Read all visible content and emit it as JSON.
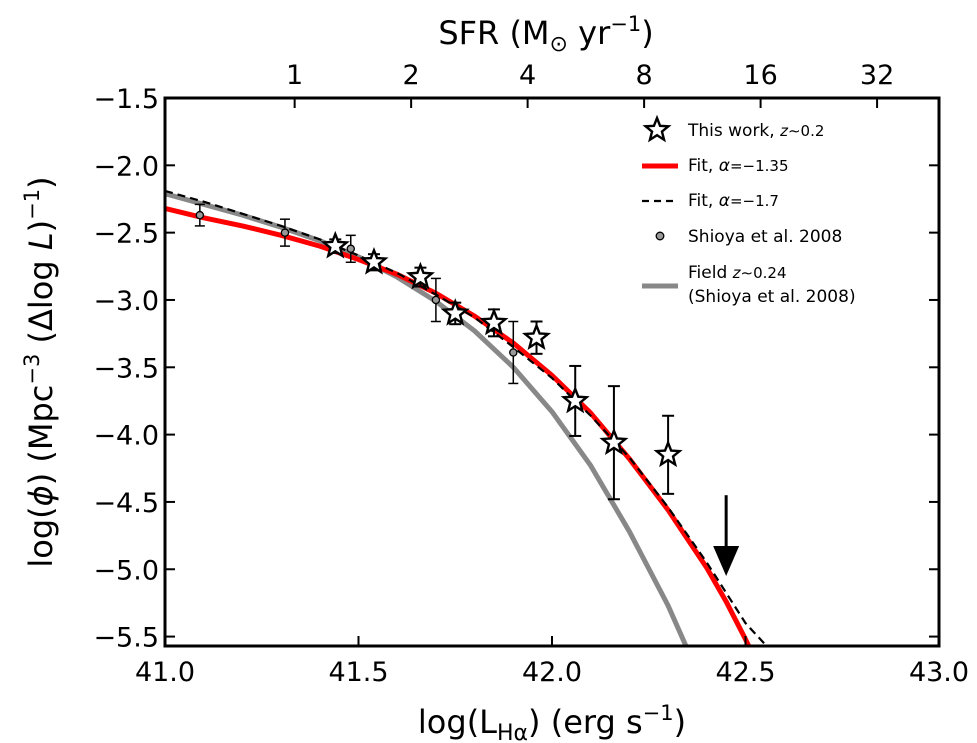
{
  "chart_data": {
    "type": "line",
    "title": "",
    "xlabel": {
      "pre": "log(L",
      "sub": "Hα",
      "post": ") (erg s",
      "sup": "−1",
      "close": ")"
    },
    "ylabel": {
      "pre": "log(",
      "phi": "ϕ",
      "mid": ") (Mpc",
      "sup1": "−3",
      "mid2": " (Δlog ",
      "L": "L",
      "close": ")",
      "sup2": "−1",
      "end": ")"
    },
    "top_xlabel": {
      "pre": "SFR (M",
      "sun": "⊙",
      "mid": " yr",
      "sup": "−1",
      "close": ")"
    },
    "xlim": [
      41.0,
      43.0
    ],
    "ylim": [
      -5.57,
      -1.5
    ],
    "xticks": [
      41.0,
      41.5,
      42.0,
      42.5,
      43.0
    ],
    "xtick_labels": [
      "41.0",
      "41.5",
      "42.0",
      "42.5",
      "43.0"
    ],
    "yticks": [
      -1.5,
      -2.0,
      -2.5,
      -3.0,
      -3.5,
      -4.0,
      -4.5,
      -5.0,
      -5.5
    ],
    "ytick_labels": [
      "−1.5",
      "−2.0",
      "−2.5",
      "−3.0",
      "−3.5",
      "−4.0",
      "−4.5",
      "−5.0",
      "−5.5"
    ],
    "top_ticks": [
      {
        "x": 41.335,
        "label": "1"
      },
      {
        "x": 41.636,
        "label": "2"
      },
      {
        "x": 41.937,
        "label": "4"
      },
      {
        "x": 42.238,
        "label": "8"
      },
      {
        "x": 42.539,
        "label": "16"
      },
      {
        "x": 42.84,
        "label": "32"
      }
    ],
    "series": [
      {
        "name": "Fit, α=−1.35",
        "style": "red-solid",
        "color": "#ff0000",
        "x": [
          41.0,
          41.1,
          41.2,
          41.3,
          41.4,
          41.5,
          41.6,
          41.7,
          41.8,
          41.9,
          42.0,
          42.1,
          42.2,
          42.3,
          42.4,
          42.45,
          42.5,
          42.53
        ],
        "y": [
          -2.32,
          -2.39,
          -2.45,
          -2.52,
          -2.6,
          -2.7,
          -2.81,
          -2.95,
          -3.12,
          -3.32,
          -3.56,
          -3.84,
          -4.18,
          -4.56,
          -4.99,
          -5.24,
          -5.52,
          -5.7
        ]
      },
      {
        "name": "Fit, α=−1.7",
        "style": "black-dashed",
        "color": "#000000",
        "x": [
          41.0,
          41.1,
          41.2,
          41.3,
          41.4,
          41.5,
          41.6,
          41.7,
          41.8,
          41.9,
          42.0,
          42.1,
          42.2,
          42.3,
          42.4,
          42.5,
          42.58
        ],
        "y": [
          -2.19,
          -2.27,
          -2.36,
          -2.45,
          -2.55,
          -2.67,
          -2.8,
          -2.96,
          -3.13,
          -3.35,
          -3.58,
          -3.86,
          -4.17,
          -4.54,
          -4.95,
          -5.4,
          -5.65
        ]
      },
      {
        "name": "Field z∼0.24 (Shioya et al. 2008)",
        "style": "gray-solid",
        "color": "#888888",
        "x": [
          41.0,
          41.1,
          41.2,
          41.3,
          41.4,
          41.5,
          41.6,
          41.7,
          41.8,
          41.9,
          42.0,
          42.1,
          42.2,
          42.3,
          42.36,
          42.38
        ],
        "y": [
          -2.21,
          -2.29,
          -2.37,
          -2.46,
          -2.56,
          -2.68,
          -2.83,
          -3.01,
          -3.23,
          -3.5,
          -3.83,
          -4.23,
          -4.72,
          -5.27,
          -5.66,
          -5.75
        ]
      }
    ],
    "this_work": {
      "name": "This work, z∼0.2",
      "points": [
        {
          "x": 41.44,
          "y": -2.6,
          "err": 0.05
        },
        {
          "x": 41.54,
          "y": -2.72,
          "err": 0.06
        },
        {
          "x": 41.66,
          "y": -2.83,
          "err": 0.07
        },
        {
          "x": 41.75,
          "y": -3.1,
          "err": 0.08
        },
        {
          "x": 41.85,
          "y": -3.17,
          "err": 0.1
        },
        {
          "x": 41.96,
          "y": -3.28,
          "err": 0.12
        },
        {
          "x": 42.06,
          "y": -3.75,
          "err": 0.26
        },
        {
          "x": 42.16,
          "y": -4.06,
          "err": 0.42
        },
        {
          "x": 42.3,
          "y": -4.15,
          "err": 0.29
        }
      ],
      "upper_limit": {
        "x": 42.45,
        "y_top": -4.45,
        "y_tip": -5.05
      }
    },
    "shioya": {
      "name": "Shioya et al. 2008",
      "points": [
        {
          "x": 41.09,
          "y": -2.37,
          "err": 0.08
        },
        {
          "x": 41.31,
          "y": -2.5,
          "err": 0.1
        },
        {
          "x": 41.48,
          "y": -2.62,
          "err": 0.1
        },
        {
          "x": 41.7,
          "y": -3.0,
          "err": 0.16
        },
        {
          "x": 41.9,
          "y": -3.39,
          "err": 0.23
        }
      ]
    },
    "legend": {
      "placement": "top-right",
      "this_work": {
        "pre": "This work, ",
        "it": "z",
        "post": "∼0.2"
      },
      "fit_135": {
        "pre": "Fit, ",
        "it": "α",
        "post": "=−1.35"
      },
      "fit_17": {
        "pre": "Fit, ",
        "it": "α",
        "post": "=−1.7"
      },
      "shioya": "Shioya et al. 2008",
      "field_line1": {
        "pre": "Field ",
        "it": "z",
        "post": "∼0.24"
      },
      "field_line2": "(Shioya et al. 2008)"
    },
    "grid": false
  }
}
